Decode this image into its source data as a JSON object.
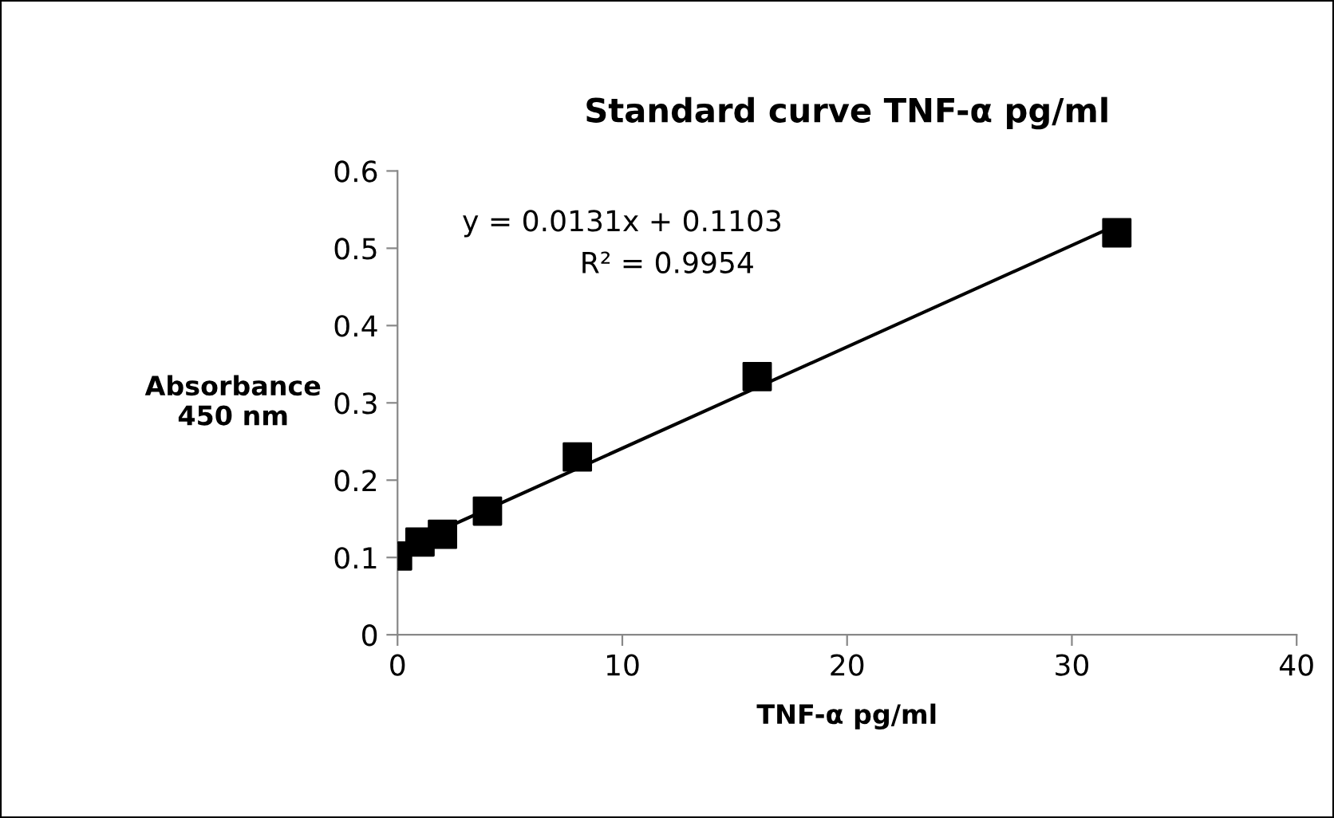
{
  "chart_data": {
    "type": "scatter",
    "title": "Standard curve TNF-α pg/ml",
    "xlabel": "TNF-α pg/ml",
    "ylabel": "Absorbance\n450 nm",
    "annotations": [
      "y = 0.0131x + 0.1103",
      "R² = 0.9954"
    ],
    "series": [
      {
        "color": "#000000",
        "marker": "square",
        "x": [
          0,
          1,
          2,
          4,
          8,
          16,
          32
        ],
        "values": [
          0.102,
          0.12,
          0.13,
          0.16,
          0.23,
          0.334,
          0.52
        ]
      },
      {
        "type": "line",
        "color": "#000000",
        "line_style": "solid",
        "x": [
          0,
          32
        ],
        "values": [
          0.11,
          0.53
        ]
      }
    ],
    "xlim": [
      0,
      40
    ],
    "xticks": [
      0,
      10,
      20,
      30,
      40
    ],
    "ylim": [
      0,
      0.6
    ],
    "yticks": [
      0,
      0.1,
      0.2,
      0.3,
      0.4,
      0.5,
      0.6
    ],
    "grid": false,
    "legend": false
  }
}
